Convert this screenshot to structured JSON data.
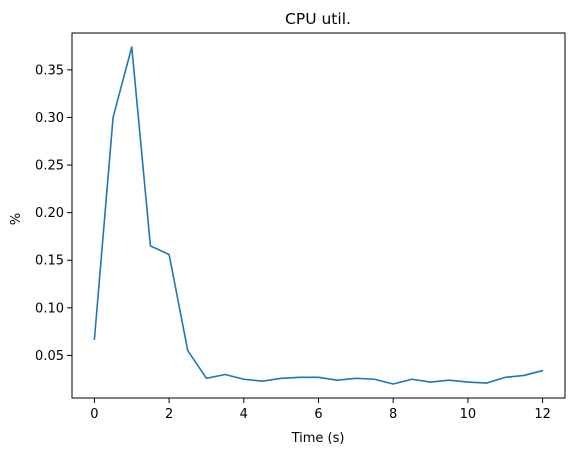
{
  "chart_data": {
    "type": "line",
    "title": "CPU util.",
    "xlabel": "Time (s)",
    "ylabel": "%",
    "xlim": [
      -0.6,
      12.6
    ],
    "ylim": [
      0.0053,
      0.3887
    ],
    "xticks": [
      0,
      2,
      4,
      6,
      8,
      10,
      12
    ],
    "yticks": [
      0.05,
      0.1,
      0.15,
      0.2,
      0.25,
      0.3,
      0.35
    ],
    "xtick_labels": [
      "0",
      "2",
      "4",
      "6",
      "8",
      "10",
      "12"
    ],
    "ytick_labels": [
      "0.05",
      "0.10",
      "0.15",
      "0.20",
      "0.25",
      "0.30",
      "0.35"
    ],
    "grid": false,
    "series": [
      {
        "name": "CPU util.",
        "color": "#1f77b4",
        "x": [
          0,
          0.5,
          1,
          1.5,
          2,
          2.5,
          3,
          3.5,
          4,
          4.5,
          5,
          5.5,
          6,
          6.5,
          7,
          7.5,
          8,
          8.5,
          9,
          9.5,
          10,
          10.5,
          11,
          11.5,
          12
        ],
        "y": [
          0.067,
          0.3,
          0.374,
          0.165,
          0.156,
          0.055,
          0.026,
          0.03,
          0.025,
          0.023,
          0.026,
          0.027,
          0.027,
          0.024,
          0.026,
          0.025,
          0.02,
          0.025,
          0.022,
          0.024,
          0.022,
          0.021,
          0.027,
          0.029,
          0.034
        ]
      }
    ]
  }
}
